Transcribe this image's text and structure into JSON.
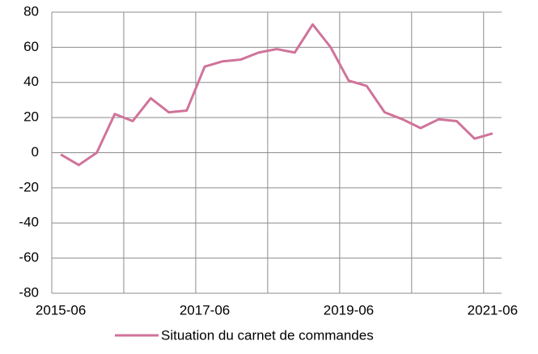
{
  "chart_data": {
    "type": "line",
    "categories": [
      "2015-06",
      null,
      null,
      null,
      null,
      null,
      null,
      null,
      "2017-06",
      null,
      null,
      null,
      null,
      null,
      null,
      null,
      "2019-06",
      null,
      null,
      null,
      null,
      null,
      null,
      null,
      "2021-06"
    ],
    "series": [
      {
        "name": "Situation du carnet de commandes",
        "color": "#d0739a",
        "values": [
          -1,
          -7,
          0,
          22,
          18,
          31,
          23,
          24,
          49,
          52,
          53,
          57,
          59,
          57,
          73,
          60,
          41,
          38,
          23,
          19,
          14,
          19,
          18,
          8,
          11
        ]
      }
    ],
    "ylim": [
      -80,
      80
    ],
    "yticks": [
      -80,
      -60,
      -40,
      -20,
      0,
      20,
      40,
      60,
      80
    ],
    "grid": true
  }
}
